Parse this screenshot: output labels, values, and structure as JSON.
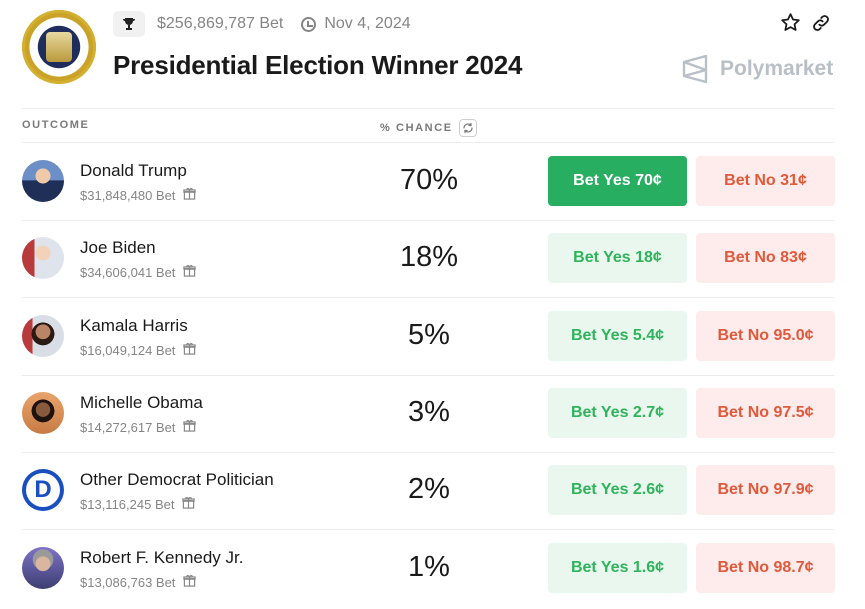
{
  "header": {
    "volume": "$256,869,787 Bet",
    "date": "Nov 4, 2024",
    "title": "Presidential Election Winner 2024",
    "brand": "Polymarket"
  },
  "columns": {
    "outcome": "OUTCOME",
    "chance": "% CHANCE"
  },
  "outcomes": [
    {
      "name": "Donald Trump",
      "volume": "$31,848,480 Bet",
      "chance": "70%",
      "yes": "Bet Yes 70¢",
      "no": "Bet No 31¢"
    },
    {
      "name": "Joe Biden",
      "volume": "$34,606,041 Bet",
      "chance": "18%",
      "yes": "Bet Yes 18¢",
      "no": "Bet No 83¢"
    },
    {
      "name": "Kamala Harris",
      "volume": "$16,049,124 Bet",
      "chance": "5%",
      "yes": "Bet Yes 5.4¢",
      "no": "Bet No 95.0¢"
    },
    {
      "name": "Michelle Obama",
      "volume": "$14,272,617 Bet",
      "chance": "3%",
      "yes": "Bet Yes 2.7¢",
      "no": "Bet No 97.5¢"
    },
    {
      "name": "Other Democrat Politician",
      "volume": "$13,116,245 Bet",
      "chance": "2%",
      "yes": "Bet Yes 2.6¢",
      "no": "Bet No 97.9¢"
    },
    {
      "name": "Robert F. Kennedy Jr.",
      "volume": "$13,086,763 Bet",
      "chance": "1%",
      "yes": "Bet Yes 1.6¢",
      "no": "Bet No 98.7¢"
    }
  ],
  "icons": {
    "trophy": "trophy-icon",
    "clock": "clock-icon",
    "star": "star-icon",
    "link": "link-icon",
    "refresh": "refresh-icon",
    "gift": "gift-icon"
  },
  "colors": {
    "yes_active": "#27ae60",
    "yes_text": "#2fb45c",
    "yes_bg": "#e9f7ee",
    "no_text": "#e0593b",
    "no_bg": "#fdeceb"
  }
}
